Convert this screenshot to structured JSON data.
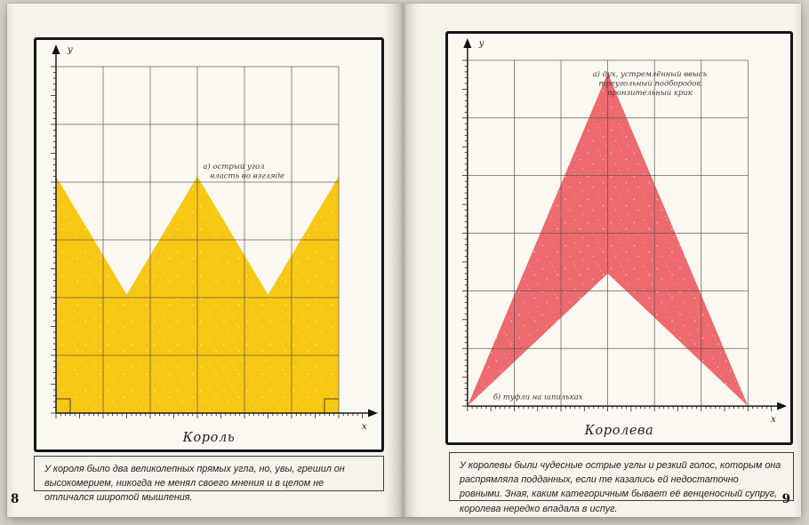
{
  "book": {
    "left_page_number": "8",
    "right_page_number": "9",
    "left_caption": "У короля было два великолепных прямых угла, но, увы, грешил он высокомерием, никогда не менял своего мнения и в целом не отличался широтой мышления.",
    "right_caption": "У королевы были чудесные острые углы и резкий голос, которым она распрямляла подданных, если те казались ей недостаточно ровными. Зная, каким категоричным бывает её венценосный супруг, королева нередко впадала в испуг."
  },
  "chart_data": [
    {
      "type": "area",
      "title": "Король",
      "xlabel": "x",
      "ylabel": "y",
      "xlim": [
        0,
        6
      ],
      "ylim": [
        0,
        6
      ],
      "grid": true,
      "grid_cols": 6,
      "grid_rows": 6,
      "axis_style": "ruler-ticks-with-arrows",
      "shape": "crown",
      "fill_color": "#f8c713",
      "grid_color": "#55524a",
      "polygon": [
        [
          0,
          0
        ],
        [
          0,
          4.1
        ],
        [
          1.5,
          2.05
        ],
        [
          3,
          4.1
        ],
        [
          4.5,
          2.05
        ],
        [
          6,
          4.1
        ],
        [
          6,
          0
        ]
      ],
      "right_angle_marks": [
        {
          "corner": "bottom-left"
        },
        {
          "corner": "bottom-right"
        }
      ],
      "annotations": [
        {
          "lines": [
            "а) острый угол",
            "власть во взгляде"
          ],
          "x": 3.12,
          "y": 4.23,
          "anchor": "start"
        }
      ]
    },
    {
      "type": "area",
      "title": "Королева",
      "xlabel": "x",
      "ylabel": "y",
      "xlim": [
        0,
        6
      ],
      "ylim": [
        0,
        6
      ],
      "grid": true,
      "grid_cols": 6,
      "grid_rows": 6,
      "axis_style": "ruler-ticks-with-arrows",
      "shape": "arrowhead",
      "fill_color": "#ed6a6f",
      "grid_color": "#55524a",
      "polygon": [
        [
          0,
          0
        ],
        [
          3,
          5.78
        ],
        [
          6,
          0
        ],
        [
          3,
          2.3
        ]
      ],
      "right_angle_marks": [],
      "annotations": [
        {
          "lines": [
            "а) дух, устремлённый ввысь",
            "треугольный подбородок",
            "пронзительный крик"
          ],
          "x": 3.9,
          "y": 5.72,
          "anchor": "middle"
        },
        {
          "lines": [
            "б) туфли на шпильках"
          ],
          "x": 0.55,
          "y": 0.12,
          "anchor": "start"
        }
      ]
    }
  ]
}
